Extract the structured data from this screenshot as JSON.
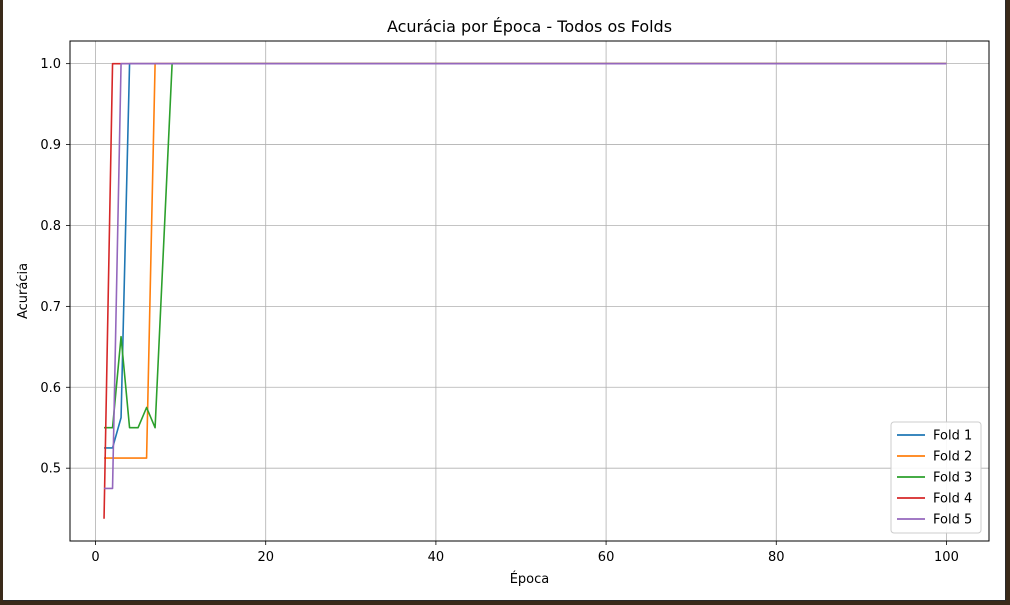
{
  "chart_data": {
    "type": "line",
    "title": "Acurácia por Época - Todos os Folds",
    "xlabel": "Época",
    "ylabel": "Acurácia",
    "xlim": [
      -3,
      105
    ],
    "ylim": [
      0.41,
      1.028
    ],
    "xticks": [
      0,
      20,
      40,
      60,
      80,
      100
    ],
    "yticks": [
      0.5,
      0.6,
      0.7,
      0.8,
      0.9,
      1.0
    ],
    "xtick_labels": [
      "0",
      "20",
      "40",
      "60",
      "80",
      "100"
    ],
    "ytick_labels": [
      "0.5",
      "0.6",
      "0.7",
      "0.8",
      "0.9",
      "1.0"
    ],
    "grid": true,
    "legend_position": "lower right",
    "series": [
      {
        "name": "Fold 1",
        "color": "#1f77b4",
        "x": [
          1,
          2,
          3,
          4,
          5,
          100
        ],
        "y": [
          0.525,
          0.525,
          0.5625,
          1.0,
          1.0,
          1.0
        ]
      },
      {
        "name": "Fold 2",
        "color": "#ff7f0e",
        "x": [
          1,
          2,
          3,
          4,
          5,
          6,
          7,
          8,
          100
        ],
        "y": [
          0.5125,
          0.5125,
          0.5125,
          0.5125,
          0.5125,
          0.5125,
          1.0,
          1.0,
          1.0
        ]
      },
      {
        "name": "Fold 3",
        "color": "#2ca02c",
        "x": [
          1,
          2,
          3,
          4,
          5,
          6,
          7,
          8,
          9,
          10,
          100
        ],
        "y": [
          0.55,
          0.55,
          0.6625,
          0.55,
          0.55,
          0.575,
          0.55,
          0.775,
          1.0,
          1.0,
          1.0
        ]
      },
      {
        "name": "Fold 4",
        "color": "#d62728",
        "x": [
          1,
          2,
          3,
          100
        ],
        "y": [
          0.4375,
          1.0,
          1.0,
          1.0
        ]
      },
      {
        "name": "Fold 5",
        "color": "#9467bd",
        "x": [
          1,
          2,
          3,
          4,
          100
        ],
        "y": [
          0.475,
          0.475,
          1.0,
          1.0,
          1.0
        ]
      }
    ]
  }
}
